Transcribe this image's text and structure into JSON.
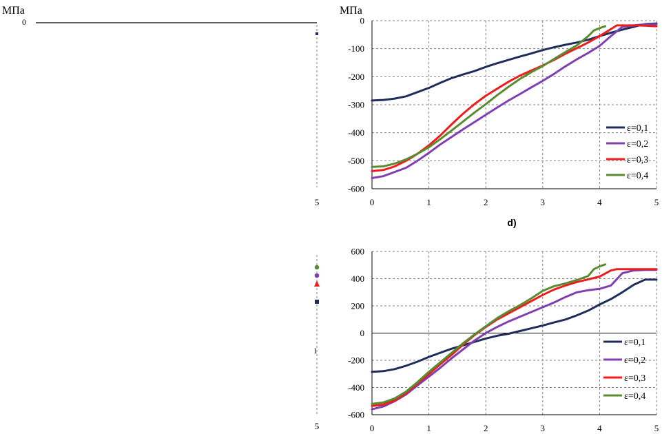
{
  "colors": {
    "e01": "#1f2d5a",
    "e02": "#7f3fb2",
    "e03": "#ee1c1c",
    "e04": "#5b8b2f",
    "grid": "#808080"
  },
  "left_fragment": {
    "top_unit": "МПа",
    "top_tick": "0",
    "top_x_tick": "5",
    "bottom_x_tick": "5",
    "bottom_mid_tick": "1"
  },
  "chart_data": [
    {
      "type": "line",
      "name": "top-right",
      "unit_label": "МПа",
      "title": "",
      "xlabel": "",
      "ylabel": "МПа",
      "xlim": [
        0,
        5
      ],
      "ylim": [
        -600,
        0
      ],
      "x_ticks": [
        "0",
        "1",
        "2",
        "3",
        "4",
        "5"
      ],
      "y_ticks": [
        "0",
        "-100",
        "-200",
        "-300",
        "-400",
        "-500",
        "-600"
      ],
      "legend_position": "bottom-right",
      "series": [
        {
          "name": "ε=0,1",
          "color_key": "e01",
          "points": [
            [
              0,
              -285
            ],
            [
              0.2,
              -283
            ],
            [
              0.4,
              -278
            ],
            [
              0.6,
              -270
            ],
            [
              0.8,
              -255
            ],
            [
              1.0,
              -240
            ],
            [
              1.2,
              -222
            ],
            [
              1.4,
              -205
            ],
            [
              1.6,
              -192
            ],
            [
              1.8,
              -180
            ],
            [
              2.0,
              -165
            ],
            [
              2.2,
              -152
            ],
            [
              2.4,
              -140
            ],
            [
              2.6,
              -128
            ],
            [
              2.8,
              -117
            ],
            [
              3.0,
              -105
            ],
            [
              3.2,
              -95
            ],
            [
              3.4,
              -86
            ],
            [
              3.6,
              -78
            ],
            [
              3.8,
              -68
            ],
            [
              4.0,
              -55
            ],
            [
              4.2,
              -43
            ],
            [
              4.4,
              -32
            ],
            [
              4.6,
              -22
            ],
            [
              4.8,
              -12
            ],
            [
              5.0,
              -10
            ]
          ]
        },
        {
          "name": "ε=0,2",
          "color_key": "e02",
          "points": [
            [
              0,
              -562
            ],
            [
              0.2,
              -555
            ],
            [
              0.4,
              -540
            ],
            [
              0.6,
              -525
            ],
            [
              0.8,
              -500
            ],
            [
              1.0,
              -472
            ],
            [
              1.2,
              -442
            ],
            [
              1.4,
              -415
            ],
            [
              1.6,
              -388
            ],
            [
              1.8,
              -362
            ],
            [
              2.0,
              -336
            ],
            [
              2.2,
              -310
            ],
            [
              2.4,
              -285
            ],
            [
              2.6,
              -262
            ],
            [
              2.8,
              -238
            ],
            [
              3.0,
              -215
            ],
            [
              3.2,
              -190
            ],
            [
              3.4,
              -163
            ],
            [
              3.6,
              -138
            ],
            [
              3.8,
              -115
            ],
            [
              4.0,
              -90
            ],
            [
              4.2,
              -55
            ],
            [
              4.4,
              -22
            ],
            [
              4.6,
              -17
            ],
            [
              4.8,
              -13
            ],
            [
              5.0,
              -13
            ]
          ]
        },
        {
          "name": "ε=0,3",
          "color_key": "e03",
          "points": [
            [
              0,
              -537
            ],
            [
              0.2,
              -533
            ],
            [
              0.4,
              -520
            ],
            [
              0.6,
              -500
            ],
            [
              0.8,
              -475
            ],
            [
              1.0,
              -445
            ],
            [
              1.2,
              -410
            ],
            [
              1.4,
              -370
            ],
            [
              1.6,
              -332
            ],
            [
              1.8,
              -298
            ],
            [
              2.0,
              -268
            ],
            [
              2.2,
              -243
            ],
            [
              2.4,
              -218
            ],
            [
              2.6,
              -196
            ],
            [
              2.8,
              -178
            ],
            [
              3.0,
              -160
            ],
            [
              3.2,
              -140
            ],
            [
              3.4,
              -118
            ],
            [
              3.6,
              -98
            ],
            [
              3.8,
              -78
            ],
            [
              4.0,
              -55
            ],
            [
              4.2,
              -30
            ],
            [
              4.3,
              -17
            ],
            [
              4.6,
              -17
            ],
            [
              4.8,
              -18
            ],
            [
              5.0,
              -20
            ]
          ]
        },
        {
          "name": "ε=0,4",
          "color_key": "e04",
          "points": [
            [
              0,
              -522
            ],
            [
              0.2,
              -520
            ],
            [
              0.4,
              -510
            ],
            [
              0.6,
              -495
            ],
            [
              0.8,
              -475
            ],
            [
              1.0,
              -452
            ],
            [
              1.2,
              -423
            ],
            [
              1.4,
              -392
            ],
            [
              1.6,
              -360
            ],
            [
              1.8,
              -328
            ],
            [
              2.0,
              -298
            ],
            [
              2.2,
              -266
            ],
            [
              2.4,
              -236
            ],
            [
              2.6,
              -208
            ],
            [
              2.8,
              -184
            ],
            [
              3.0,
              -162
            ],
            [
              3.2,
              -137
            ],
            [
              3.4,
              -112
            ],
            [
              3.6,
              -88
            ],
            [
              3.8,
              -55
            ],
            [
              3.9,
              -35
            ],
            [
              4.05,
              -23
            ],
            [
              4.1,
              -20
            ]
          ]
        }
      ]
    },
    {
      "type": "line",
      "name": "bottom-right",
      "panel_label": "d)",
      "title": "",
      "xlabel": "",
      "ylabel": "",
      "xlim": [
        0,
        5
      ],
      "ylim": [
        -600,
        600
      ],
      "x_ticks": [
        "0",
        "1",
        "2",
        "3",
        "4",
        "5"
      ],
      "y_ticks": [
        "600",
        "400",
        "200",
        "0",
        "-200",
        "-400",
        "-600"
      ],
      "legend_position": "bottom-right",
      "series": [
        {
          "name": "ε=0,1",
          "color_key": "e01",
          "points": [
            [
              0,
              -285
            ],
            [
              0.2,
              -280
            ],
            [
              0.4,
              -265
            ],
            [
              0.6,
              -240
            ],
            [
              0.8,
              -210
            ],
            [
              1.0,
              -175
            ],
            [
              1.2,
              -145
            ],
            [
              1.4,
              -115
            ],
            [
              1.6,
              -90
            ],
            [
              1.8,
              -65
            ],
            [
              2.0,
              -40
            ],
            [
              2.2,
              -20
            ],
            [
              2.4,
              -5
            ],
            [
              2.6,
              15
            ],
            [
              2.8,
              35
            ],
            [
              3.0,
              55
            ],
            [
              3.2,
              78
            ],
            [
              3.4,
              100
            ],
            [
              3.6,
              130
            ],
            [
              3.8,
              165
            ],
            [
              4.0,
              210
            ],
            [
              4.2,
              250
            ],
            [
              4.4,
              300
            ],
            [
              4.6,
              355
            ],
            [
              4.8,
              393
            ],
            [
              5.0,
              393
            ]
          ]
        },
        {
          "name": "ε=0,2",
          "color_key": "e02",
          "points": [
            [
              0,
              -560
            ],
            [
              0.2,
              -540
            ],
            [
              0.4,
              -500
            ],
            [
              0.6,
              -450
            ],
            [
              0.8,
              -385
            ],
            [
              1.0,
              -320
            ],
            [
              1.2,
              -255
            ],
            [
              1.4,
              -185
            ],
            [
              1.6,
              -120
            ],
            [
              1.8,
              -55
            ],
            [
              2.0,
              0
            ],
            [
              2.2,
              45
            ],
            [
              2.4,
              85
            ],
            [
              2.6,
              120
            ],
            [
              2.8,
              155
            ],
            [
              3.0,
              190
            ],
            [
              3.2,
              225
            ],
            [
              3.4,
              265
            ],
            [
              3.6,
              300
            ],
            [
              3.8,
              315
            ],
            [
              4.0,
              325
            ],
            [
              4.2,
              350
            ],
            [
              4.4,
              440
            ],
            [
              4.6,
              460
            ],
            [
              4.8,
              465
            ],
            [
              5.0,
              465
            ]
          ]
        },
        {
          "name": "ε=0,3",
          "color_key": "e03",
          "points": [
            [
              0,
              -535
            ],
            [
              0.2,
              -525
            ],
            [
              0.4,
              -495
            ],
            [
              0.6,
              -440
            ],
            [
              0.8,
              -370
            ],
            [
              1.0,
              -300
            ],
            [
              1.2,
              -230
            ],
            [
              1.4,
              -160
            ],
            [
              1.6,
              -85
            ],
            [
              1.8,
              -15
            ],
            [
              2.0,
              45
            ],
            [
              2.2,
              100
            ],
            [
              2.4,
              145
            ],
            [
              2.6,
              190
            ],
            [
              2.8,
              235
            ],
            [
              3.0,
              280
            ],
            [
              3.2,
              320
            ],
            [
              3.4,
              350
            ],
            [
              3.6,
              375
            ],
            [
              3.8,
              395
            ],
            [
              4.0,
              415
            ],
            [
              4.2,
              460
            ],
            [
              4.3,
              470
            ],
            [
              4.6,
              470
            ],
            [
              4.8,
              470
            ],
            [
              5.0,
              470
            ]
          ]
        },
        {
          "name": "ε=0,4",
          "color_key": "e04",
          "points": [
            [
              0,
              -520
            ],
            [
              0.2,
              -510
            ],
            [
              0.4,
              -480
            ],
            [
              0.6,
              -430
            ],
            [
              0.8,
              -360
            ],
            [
              1.0,
              -285
            ],
            [
              1.2,
              -215
            ],
            [
              1.4,
              -145
            ],
            [
              1.6,
              -75
            ],
            [
              1.8,
              -10
            ],
            [
              2.0,
              50
            ],
            [
              2.2,
              110
            ],
            [
              2.4,
              160
            ],
            [
              2.6,
              205
            ],
            [
              2.8,
              255
            ],
            [
              3.0,
              310
            ],
            [
              3.2,
              345
            ],
            [
              3.4,
              365
            ],
            [
              3.6,
              390
            ],
            [
              3.8,
              420
            ],
            [
              3.9,
              470
            ],
            [
              4.0,
              490
            ],
            [
              4.1,
              505
            ]
          ]
        }
      ]
    }
  ]
}
